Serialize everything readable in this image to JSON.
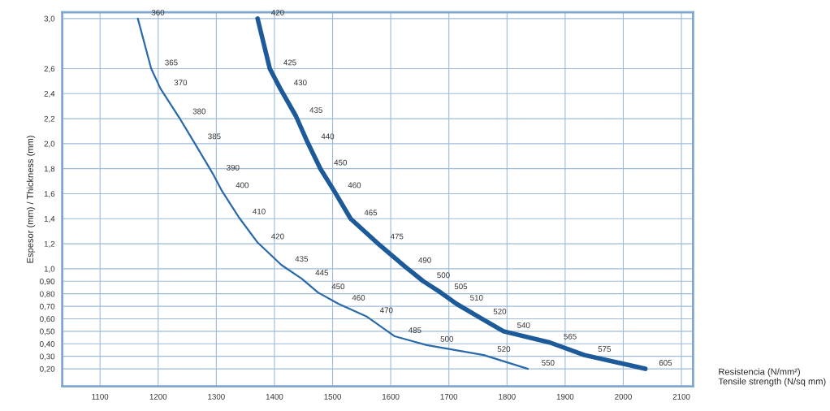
{
  "chart_data": {
    "type": "line",
    "xlabel": "Resistencia (N/mm²)\nTensile strength (N/sq mm)",
    "ylabel": "Espesor (mm) / Thickness (mm)",
    "series": [
      {
        "color": "#2a6aaa",
        "line_style": "solid",
        "x": [
          1165,
          1188,
          1204,
          1236,
          1262,
          1294,
          1310,
          1339,
          1371,
          1412,
          1447,
          1475,
          1510,
          1558,
          1607,
          1662,
          1760,
          1836
        ],
        "values": [
          3.0,
          2.6,
          2.44,
          2.21,
          2.01,
          1.76,
          1.62,
          1.41,
          1.21,
          1.03,
          0.92,
          0.81,
          0.72,
          0.62,
          0.46,
          0.39,
          0.31,
          0.2
        ]
      },
      {
        "color": "#1d5a9a",
        "line_style": "solid",
        "x": [
          1371,
          1392,
          1410,
          1437,
          1457,
          1479,
          1503,
          1531,
          1576,
          1624,
          1656,
          1686,
          1713,
          1753,
          1794,
          1874,
          1933,
          2038
        ],
        "values": [
          3.0,
          2.6,
          2.44,
          2.22,
          2.01,
          1.8,
          1.62,
          1.4,
          1.21,
          1.02,
          0.9,
          0.81,
          0.72,
          0.61,
          0.5,
          0.41,
          0.31,
          0.2
        ]
      }
    ],
    "annotations": [
      {
        "text": "360",
        "x": 1165,
        "y": 3.0
      },
      {
        "text": "365",
        "x": 1188,
        "y": 2.6
      },
      {
        "text": "370",
        "x": 1204,
        "y": 2.44
      },
      {
        "text": "380",
        "x": 1236,
        "y": 2.21
      },
      {
        "text": "385",
        "x": 1262,
        "y": 2.01
      },
      {
        "text": "390",
        "x": 1294,
        "y": 1.76
      },
      {
        "text": "400",
        "x": 1310,
        "y": 1.62
      },
      {
        "text": "410",
        "x": 1339,
        "y": 1.41
      },
      {
        "text": "420",
        "x": 1371,
        "y": 1.21
      },
      {
        "text": "435",
        "x": 1412,
        "y": 1.03
      },
      {
        "text": "445",
        "x": 1447,
        "y": 0.92
      },
      {
        "text": "450",
        "x": 1475,
        "y": 0.81
      },
      {
        "text": "460",
        "x": 1510,
        "y": 0.72
      },
      {
        "text": "470",
        "x": 1558,
        "y": 0.62
      },
      {
        "text": "485",
        "x": 1607,
        "y": 0.46
      },
      {
        "text": "500",
        "x": 1662,
        "y": 0.39
      },
      {
        "text": "520",
        "x": 1760,
        "y": 0.31
      },
      {
        "text": "550",
        "x": 1836,
        "y": 0.2
      },
      {
        "text": "420",
        "x": 1371,
        "y": 3.0
      },
      {
        "text": "425",
        "x": 1392,
        "y": 2.6
      },
      {
        "text": "430",
        "x": 1410,
        "y": 2.44
      },
      {
        "text": "435",
        "x": 1437,
        "y": 2.22
      },
      {
        "text": "440",
        "x": 1457,
        "y": 2.01
      },
      {
        "text": "450",
        "x": 1479,
        "y": 1.8
      },
      {
        "text": "460",
        "x": 1503,
        "y": 1.62
      },
      {
        "text": "465",
        "x": 1531,
        "y": 1.4
      },
      {
        "text": "475",
        "x": 1576,
        "y": 1.21
      },
      {
        "text": "490",
        "x": 1624,
        "y": 1.02
      },
      {
        "text": "500",
        "x": 1656,
        "y": 0.9
      },
      {
        "text": "505",
        "x": 1686,
        "y": 0.81
      },
      {
        "text": "510",
        "x": 1713,
        "y": 0.72
      },
      {
        "text": "520",
        "x": 1753,
        "y": 0.61
      },
      {
        "text": "540",
        "x": 1794,
        "y": 0.5
      },
      {
        "text": "565",
        "x": 1874,
        "y": 0.41
      },
      {
        "text": "575",
        "x": 1933,
        "y": 0.31
      },
      {
        "text": "605",
        "x": 2038,
        "y": 0.2
      }
    ],
    "xlim": [
      1035,
      2120
    ],
    "xticks": [
      1100,
      1200,
      1300,
      1400,
      1500,
      1600,
      1700,
      1800,
      1900,
      2000,
      2100
    ],
    "ylim": [
      0.06,
      3.05
    ],
    "yticks": [
      {
        "value": 3.0,
        "label": "3,0"
      },
      {
        "value": 2.6,
        "label": "2,6"
      },
      {
        "value": 2.4,
        "label": "2,4"
      },
      {
        "value": 2.2,
        "label": "2,2"
      },
      {
        "value": 2.0,
        "label": "2,0"
      },
      {
        "value": 1.8,
        "label": "1,8"
      },
      {
        "value": 1.6,
        "label": "1,6"
      },
      {
        "value": 1.4,
        "label": "1,4"
      },
      {
        "value": 1.2,
        "label": "1,2"
      },
      {
        "value": 1.0,
        "label": "1,0"
      },
      {
        "value": 0.9,
        "label": "0,90"
      },
      {
        "value": 0.8,
        "label": "0,80"
      },
      {
        "value": 0.7,
        "label": "0,70"
      },
      {
        "value": 0.6,
        "label": "0,60"
      },
      {
        "value": 0.5,
        "label": "0,50"
      },
      {
        "value": 0.4,
        "label": "0,40"
      },
      {
        "value": 0.3,
        "label": "0,30"
      },
      {
        "value": 0.2,
        "label": "0,20"
      }
    ],
    "grid": true,
    "legend": false,
    "marker": "none"
  }
}
